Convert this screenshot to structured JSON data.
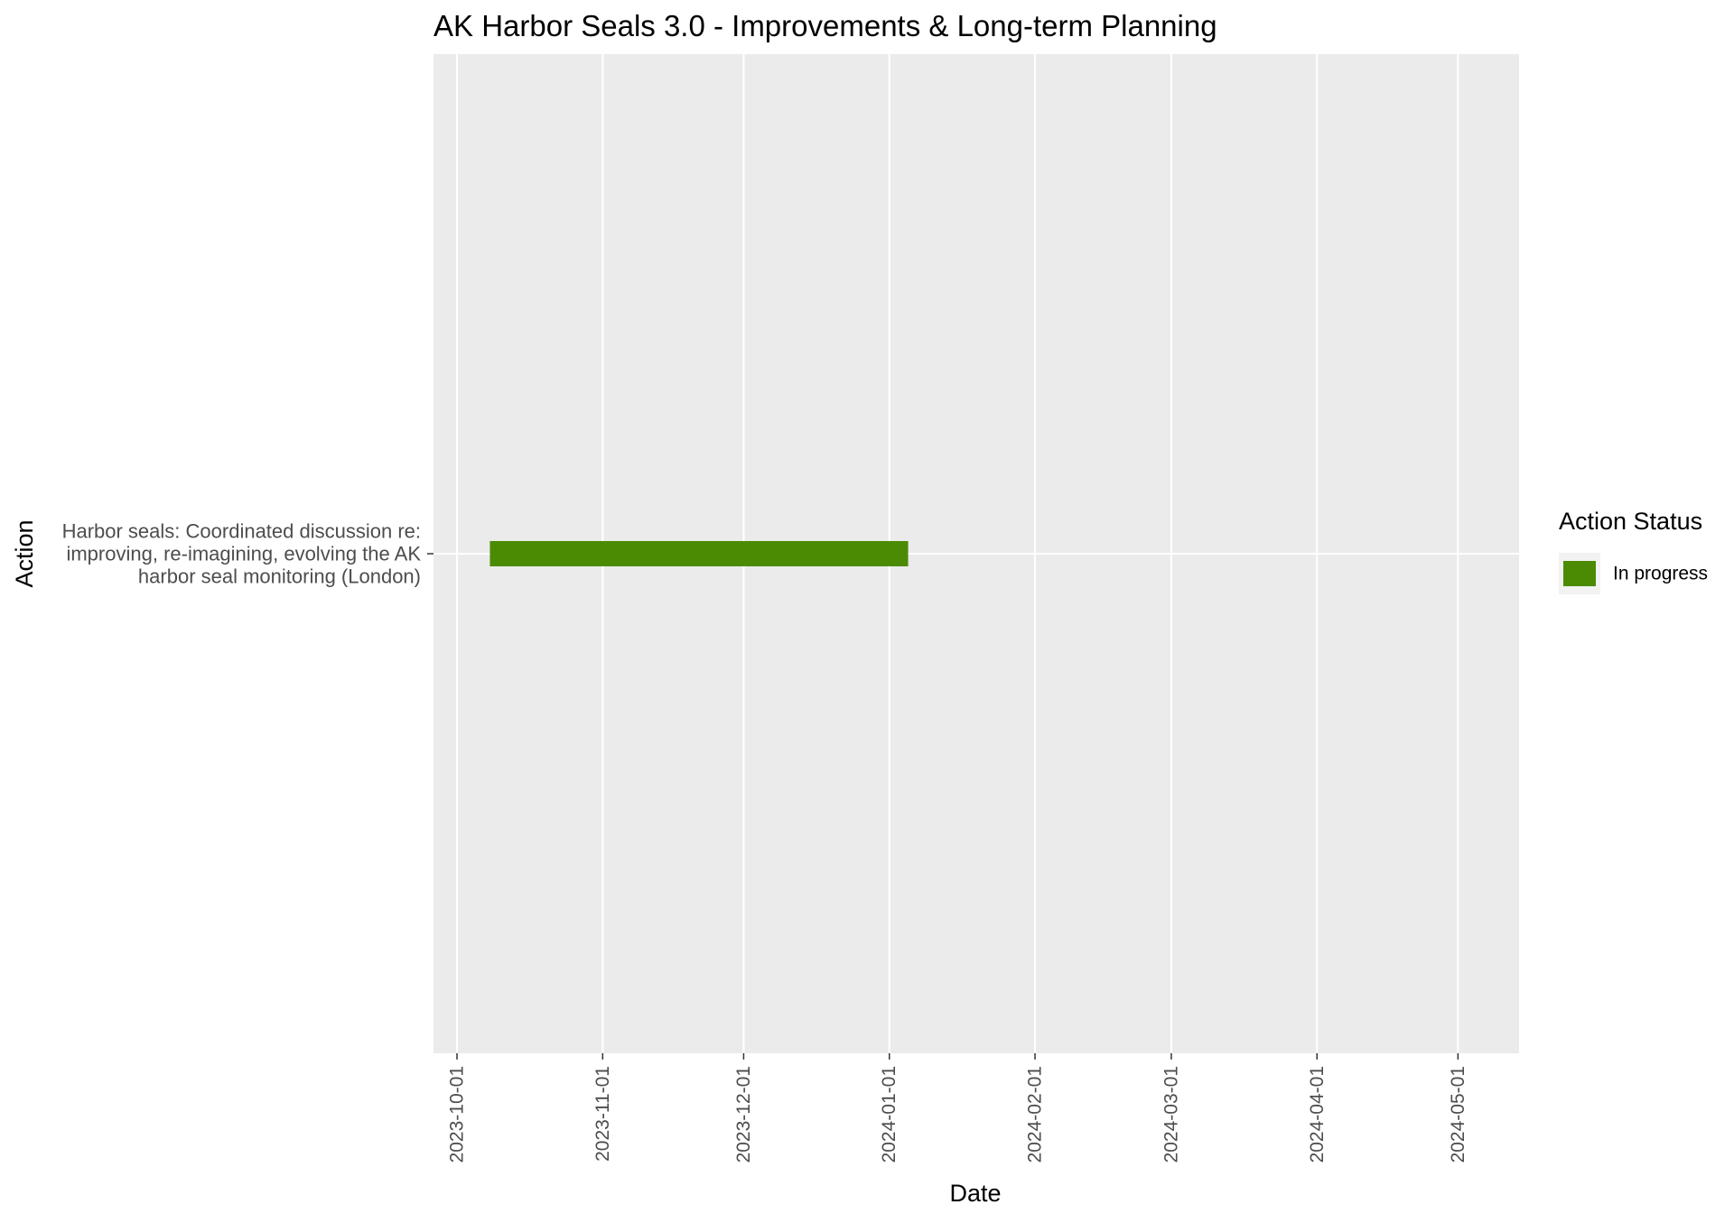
{
  "chart_data": {
    "type": "bar",
    "orientation": "horizontal-gantt",
    "title": "AK Harbor Seals 3.0 - Improvements & Long-term Planning",
    "xlabel": "Date",
    "ylabel": "Action",
    "x_ticks": [
      "2023-10-01",
      "2023-11-01",
      "2023-12-01",
      "2024-01-01",
      "2024-02-01",
      "2024-03-01",
      "2024-04-01",
      "2024-05-01"
    ],
    "xlim": [
      "2023-09-26",
      "2024-05-14"
    ],
    "grid": true,
    "legend": {
      "title": "Action Status",
      "placement": "right",
      "entries": [
        {
          "label": "In progress",
          "color": "#4b8b03"
        }
      ]
    },
    "categories": [
      "Harbor seals: Coordinated discussion re: improving, re-imagining, evolving the AK harbor seal monitoring (London)"
    ],
    "category_lines": [
      [
        "Harbor seals: Coordinated discussion re:",
        "improving, re-imagining, evolving the AK",
        "harbor seal monitoring (London)"
      ]
    ],
    "tasks": [
      {
        "category": 0,
        "start": "2023-10-08",
        "end": "2024-01-05",
        "status": "In progress",
        "color": "#4b8b03"
      }
    ]
  }
}
